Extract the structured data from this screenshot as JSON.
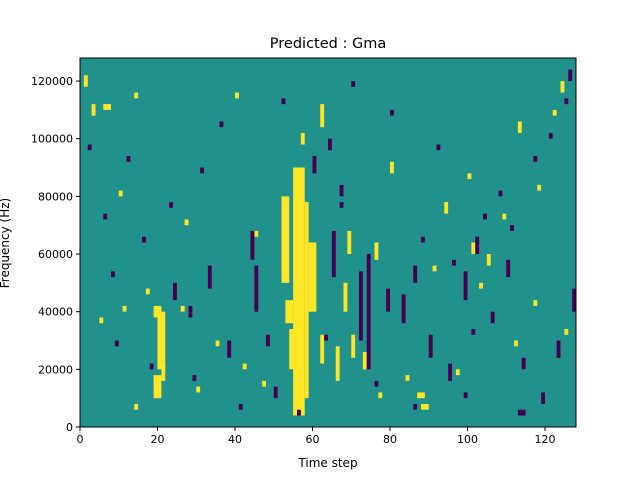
{
  "chart_data": {
    "type": "heatmap",
    "title": "Predicted : Gma",
    "xlabel": "Time step",
    "ylabel": "Frequency (Hz)",
    "xlim": [
      0,
      128
    ],
    "ylim": [
      0,
      128000
    ],
    "x_ticks": [
      0,
      20,
      40,
      60,
      80,
      100,
      120
    ],
    "x_tick_labels": [
      "0",
      "20",
      "40",
      "60",
      "80",
      "100",
      "120"
    ],
    "y_ticks": [
      0,
      20000,
      40000,
      60000,
      80000,
      100000,
      120000
    ],
    "y_tick_labels": [
      "0",
      "20000",
      "40000",
      "60000",
      "80000",
      "100000",
      "120000"
    ],
    "colormap": "viridis",
    "value_levels": [
      {
        "value": 0,
        "color": "#440154"
      },
      {
        "value": 0.5,
        "color": "#21918c"
      },
      {
        "value": 1,
        "color": "#fde725"
      }
    ],
    "background_value": 0.5,
    "rows": 64,
    "cols": 128,
    "high_blocks": [
      [
        55,
        2,
        3,
        43
      ],
      [
        56,
        3,
        1,
        2
      ],
      [
        54,
        10,
        2,
        7
      ],
      [
        53,
        18,
        2,
        4
      ],
      [
        52,
        25,
        2,
        15
      ],
      [
        58,
        5,
        1,
        34
      ],
      [
        59,
        20,
        2,
        12
      ],
      [
        19,
        5,
        2,
        4
      ],
      [
        20,
        10,
        2,
        10
      ],
      [
        21,
        8,
        1,
        3
      ],
      [
        19,
        19,
        2,
        2
      ],
      [
        20,
        12,
        1,
        2
      ],
      [
        62,
        11,
        1,
        5
      ],
      [
        66,
        8,
        1,
        6
      ],
      [
        68,
        20,
        1,
        5
      ],
      [
        70,
        12,
        1,
        4
      ],
      [
        69,
        30,
        1,
        4
      ],
      [
        87,
        5,
        2,
        1
      ],
      [
        101,
        30,
        1,
        2
      ],
      [
        105,
        28,
        1,
        2
      ],
      [
        73,
        10,
        1,
        3
      ],
      [
        76,
        29,
        1,
        3
      ],
      [
        1,
        59,
        1,
        2
      ],
      [
        3,
        54,
        1,
        2
      ],
      [
        6,
        55,
        2,
        1
      ],
      [
        14,
        57,
        1,
        1
      ],
      [
        40,
        57,
        1,
        1
      ],
      [
        62,
        52,
        1,
        4
      ],
      [
        57,
        49,
        1,
        2
      ],
      [
        80,
        44,
        1,
        2
      ],
      [
        94,
        37,
        1,
        2
      ],
      [
        109,
        36,
        1,
        1
      ],
      [
        113,
        51,
        1,
        2
      ],
      [
        124,
        58,
        1,
        2
      ],
      [
        122,
        54,
        1,
        1
      ],
      [
        5,
        18,
        1,
        1
      ],
      [
        11,
        20,
        1,
        1
      ],
      [
        17,
        23,
        1,
        1
      ],
      [
        26,
        20,
        1,
        1
      ],
      [
        35,
        14,
        1,
        1
      ],
      [
        42,
        10,
        1,
        1
      ],
      [
        47,
        7,
        1,
        1
      ],
      [
        88,
        3,
        2,
        1
      ],
      [
        97,
        9,
        1,
        1
      ],
      [
        112,
        14,
        1,
        1
      ],
      [
        117,
        21,
        1,
        1
      ],
      [
        125,
        16,
        1,
        1
      ],
      [
        14,
        3,
        1,
        1
      ],
      [
        30,
        6,
        1,
        1
      ],
      [
        77,
        5,
        1,
        1
      ],
      [
        84,
        8,
        1,
        1
      ],
      [
        103,
        24,
        1,
        1
      ],
      [
        91,
        27,
        1,
        1
      ],
      [
        45,
        33,
        1,
        1
      ],
      [
        27,
        35,
        1,
        1
      ],
      [
        10,
        40,
        1,
        1
      ],
      [
        100,
        43,
        1,
        1
      ],
      [
        118,
        41,
        1,
        1
      ]
    ],
    "low_blocks": [
      [
        45,
        20,
        1,
        8
      ],
      [
        44,
        29,
        1,
        5
      ],
      [
        65,
        26,
        1,
        8
      ],
      [
        72,
        15,
        1,
        12
      ],
      [
        74,
        10,
        1,
        20
      ],
      [
        24,
        22,
        1,
        3
      ],
      [
        28,
        19,
        1,
        2
      ],
      [
        33,
        24,
        1,
        4
      ],
      [
        38,
        12,
        1,
        3
      ],
      [
        48,
        14,
        1,
        2
      ],
      [
        50,
        5,
        1,
        2
      ],
      [
        60,
        44,
        1,
        3
      ],
      [
        64,
        48,
        1,
        2
      ],
      [
        67,
        40,
        1,
        2
      ],
      [
        79,
        20,
        1,
        4
      ],
      [
        83,
        18,
        1,
        5
      ],
      [
        86,
        25,
        1,
        3
      ],
      [
        90,
        12,
        1,
        4
      ],
      [
        95,
        8,
        1,
        3
      ],
      [
        99,
        22,
        1,
        5
      ],
      [
        102,
        30,
        1,
        3
      ],
      [
        106,
        18,
        1,
        2
      ],
      [
        110,
        26,
        1,
        3
      ],
      [
        114,
        10,
        1,
        2
      ],
      [
        119,
        4,
        1,
        2
      ],
      [
        123,
        12,
        1,
        3
      ],
      [
        127,
        20,
        1,
        4
      ],
      [
        8,
        26,
        1,
        1
      ],
      [
        12,
        46,
        1,
        1
      ],
      [
        16,
        32,
        1,
        1
      ],
      [
        23,
        38,
        1,
        1
      ],
      [
        31,
        44,
        1,
        1
      ],
      [
        36,
        52,
        1,
        1
      ],
      [
        52,
        56,
        1,
        1
      ],
      [
        70,
        59,
        1,
        1
      ],
      [
        80,
        54,
        1,
        1
      ],
      [
        92,
        48,
        1,
        1
      ],
      [
        104,
        36,
        1,
        1
      ],
      [
        108,
        40,
        1,
        1
      ],
      [
        117,
        46,
        1,
        1
      ],
      [
        121,
        50,
        1,
        1
      ],
      [
        125,
        56,
        1,
        1
      ],
      [
        2,
        48,
        1,
        1
      ],
      [
        6,
        36,
        1,
        1
      ],
      [
        9,
        14,
        1,
        1
      ],
      [
        18,
        10,
        1,
        1
      ],
      [
        29,
        8,
        1,
        1
      ],
      [
        41,
        3,
        1,
        1
      ],
      [
        56,
        2,
        1,
        1
      ],
      [
        86,
        3,
        1,
        1
      ],
      [
        113,
        2,
        2,
        1
      ],
      [
        99,
        5,
        1,
        1
      ],
      [
        76,
        7,
        1,
        1
      ],
      [
        63,
        15,
        1,
        1
      ],
      [
        67,
        38,
        1,
        1
      ],
      [
        88,
        32,
        1,
        1
      ],
      [
        96,
        28,
        1,
        1
      ],
      [
        101,
        16,
        1,
        1
      ],
      [
        111,
        34,
        1,
        1
      ],
      [
        126,
        60,
        1,
        2
      ]
    ]
  }
}
